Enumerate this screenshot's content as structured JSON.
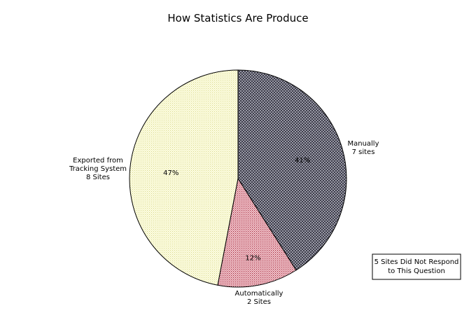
{
  "chart_data": {
    "type": "pie",
    "title": "How Statistics Are Produce",
    "start": "12 o'clock",
    "direction": "clockwise",
    "slices": [
      {
        "key": "manually",
        "percent": 41,
        "percent_label": "41%",
        "callout": [
          "Manually",
          "7 sites"
        ],
        "pattern": "dark-crosshatch",
        "color": "#7c7c88"
      },
      {
        "key": "automatically",
        "percent": 12,
        "percent_label": "12%",
        "callout": [
          "Automatically",
          "2 Sites"
        ],
        "pattern": "pink-dots",
        "color": "#e3a8b2"
      },
      {
        "key": "exported",
        "percent": 47,
        "percent_label": "47%",
        "callout": [
          "Exported from",
          "Tracking System",
          "8 Sites"
        ],
        "pattern": "yellow-dots",
        "color": "#fbfbc8"
      }
    ],
    "note": [
      "5 Sites Did Not Respond",
      "to This Question"
    ]
  }
}
